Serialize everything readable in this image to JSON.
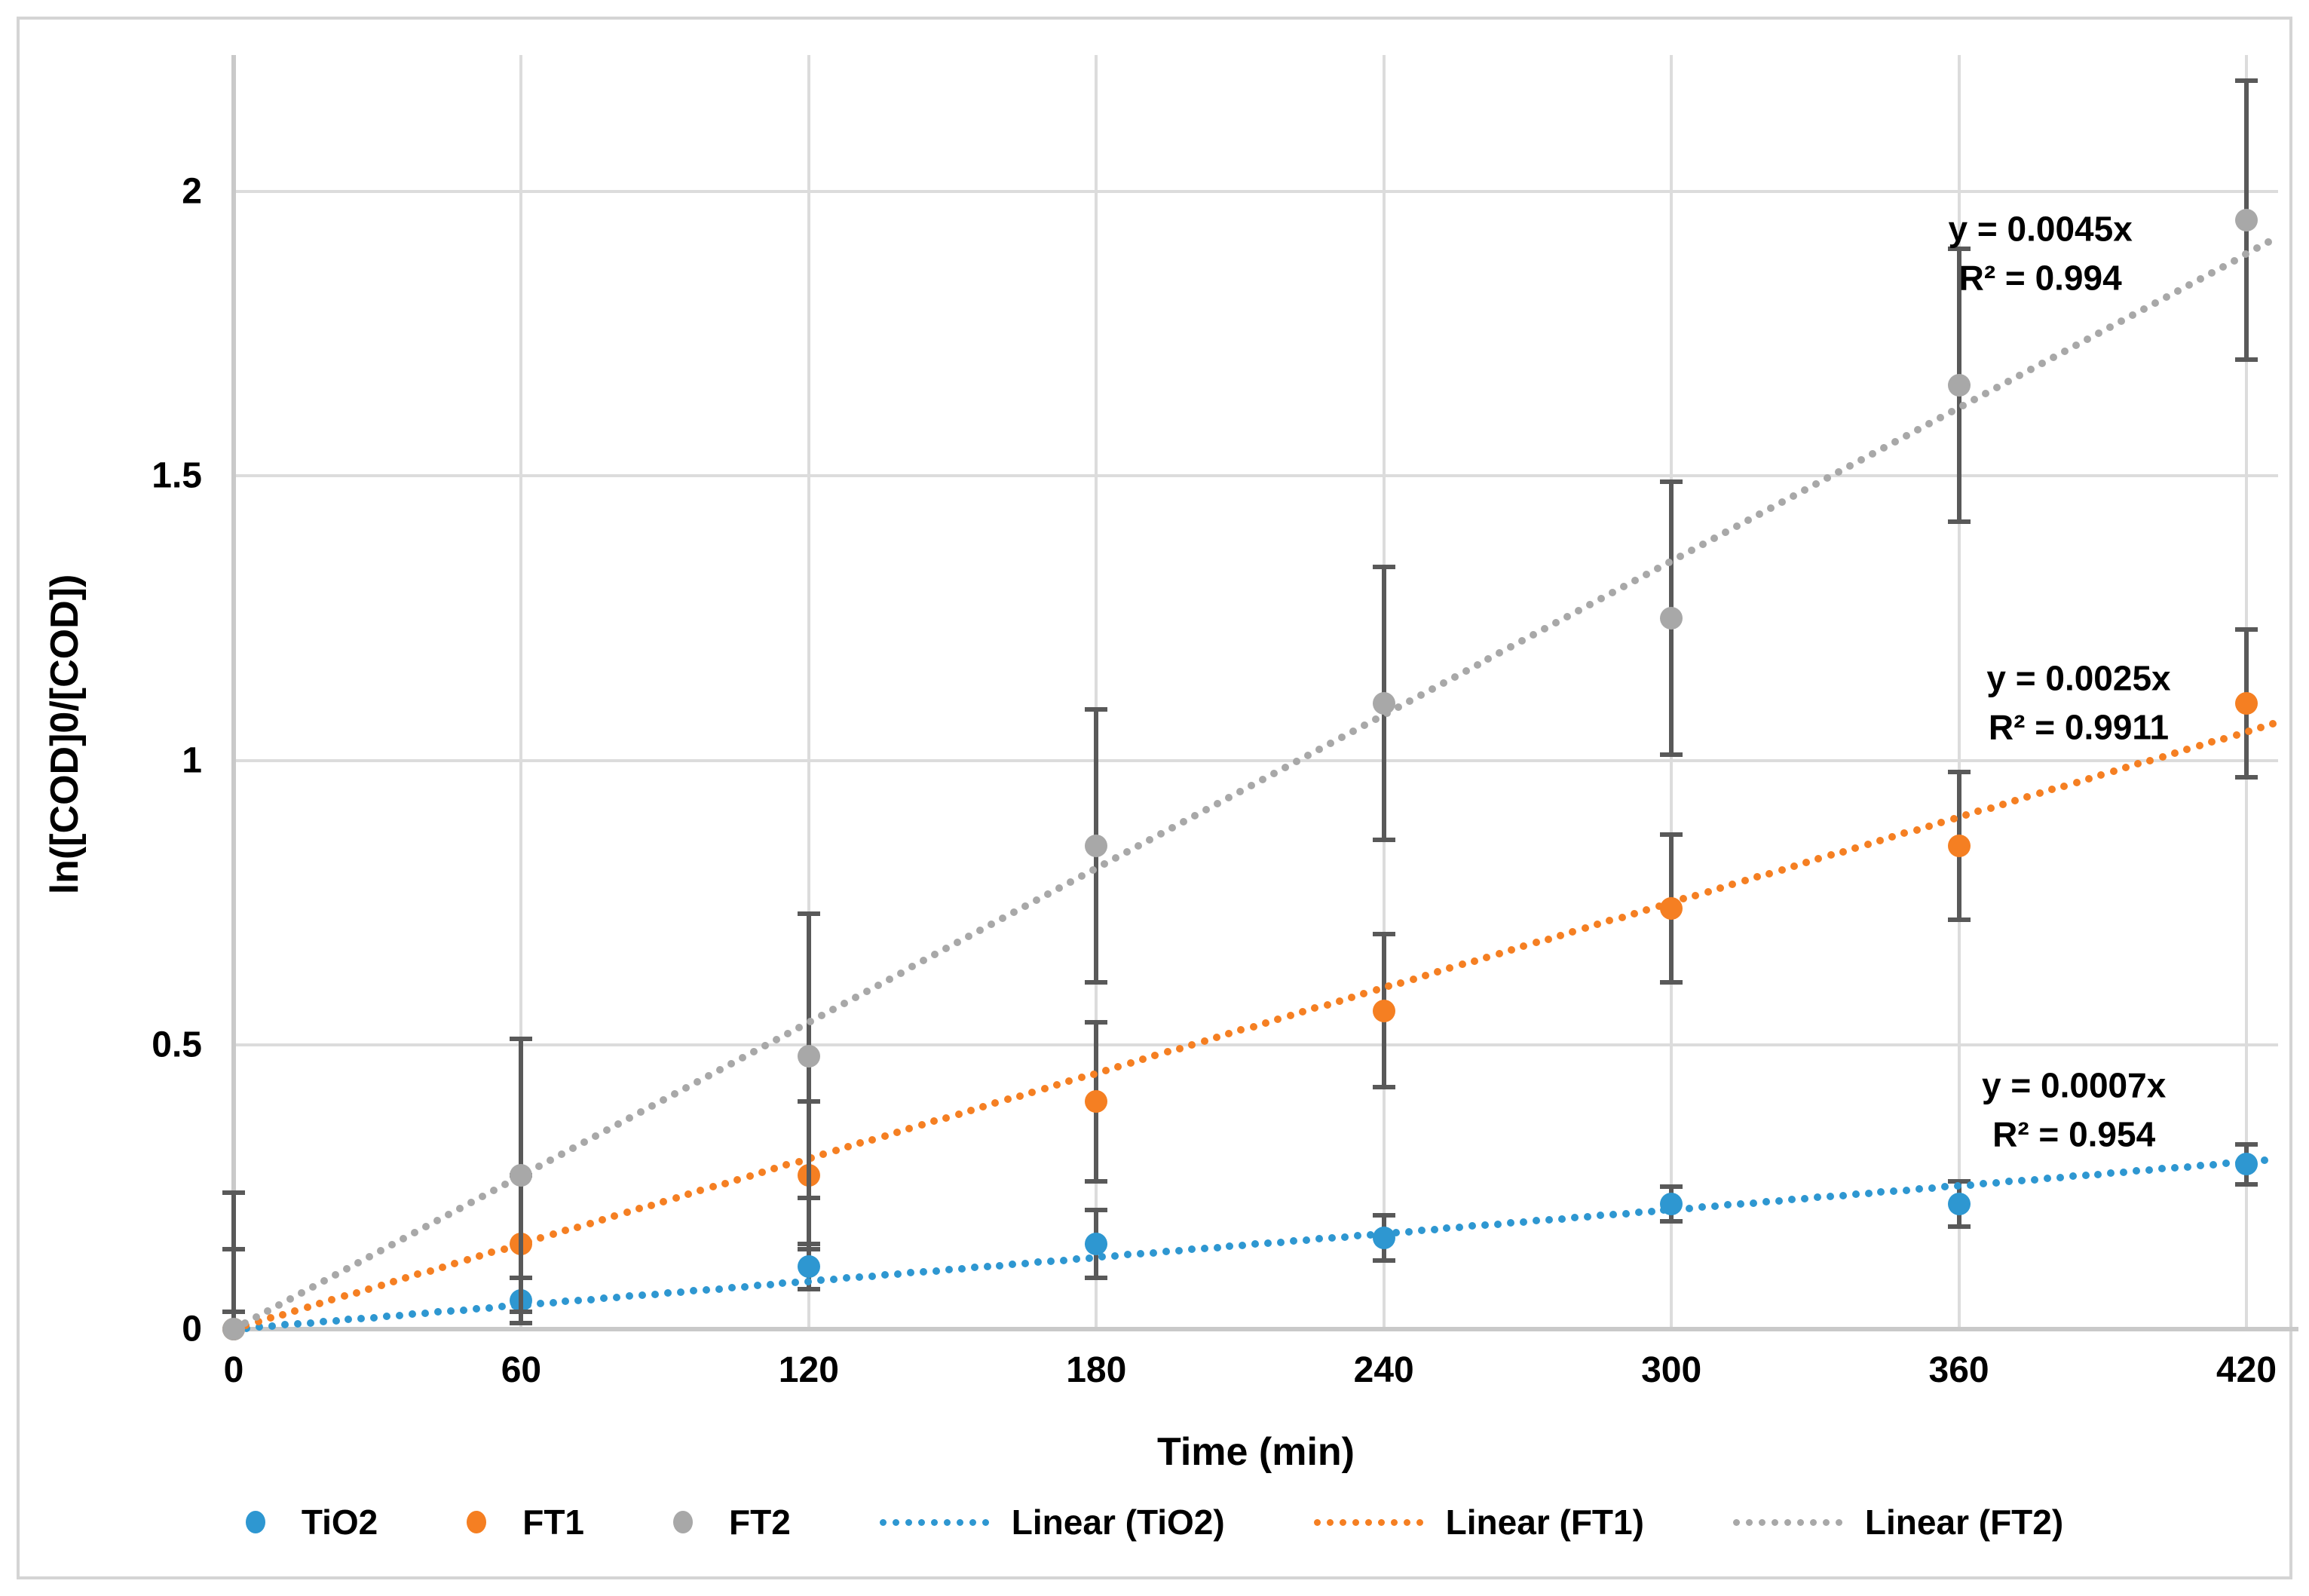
{
  "figure": {
    "background": "#ffffff",
    "border_color": "#d4d4d4",
    "gridline_color": "#dcdcdc",
    "axis_line_color": "#c9c9c9",
    "error_bar_color": "#595959",
    "text_color": "#000000"
  },
  "axes": {
    "x": {
      "title": "Time (min)",
      "ticks": [
        0,
        60,
        120,
        180,
        240,
        300,
        360,
        420
      ],
      "tick_labels": [
        "0",
        "60",
        "120",
        "180",
        "240",
        "300",
        "360",
        "420"
      ],
      "min": 0,
      "max": 426
    },
    "y": {
      "title": "ln([COD]0/[COD])",
      "ticks": [
        0,
        0.5,
        1,
        1.5,
        2
      ],
      "tick_labels": [
        "0",
        "0.5",
        "1",
        "1.5",
        "2"
      ],
      "min": 0,
      "max": 2.24
    }
  },
  "chart_data": {
    "type": "scatter",
    "x": [
      0,
      60,
      120,
      180,
      240,
      300,
      360,
      420
    ],
    "grid": "on",
    "legend_position": "bottom",
    "series": [
      {
        "name": "TiO2",
        "color": "#2e97d1",
        "marker": "circle",
        "values": [
          0,
          0.05,
          0.11,
          0.15,
          0.16,
          0.22,
          0.22,
          0.29
        ],
        "errors": [
          0.03,
          0.04,
          0.04,
          0.06,
          0.04,
          0.03,
          0.04,
          0.035
        ],
        "trendline": {
          "label": "Linear (TiO2)",
          "slope": 0.0007,
          "equation": "y = 0.0007x",
          "r_squared": "R² = 0.954",
          "label_anchor": {
            "x": 384,
            "y": 0.385
          }
        }
      },
      {
        "name": "FT1",
        "color": "#f57f22",
        "marker": "circle",
        "values": [
          0,
          0.15,
          0.27,
          0.4,
          0.56,
          0.74,
          0.85,
          1.1
        ],
        "errors": [
          0.14,
          0.12,
          0.13,
          0.14,
          0.135,
          0.13,
          0.13,
          0.13
        ],
        "trendline": {
          "label": "Linear (FT1)",
          "slope": 0.0025,
          "equation": "y = 0.0025x",
          "r_squared": "R² = 0.9911",
          "label_anchor": {
            "x": 385,
            "y": 1.1
          }
        }
      },
      {
        "name": "FT2",
        "color": "#a8a8a8",
        "marker": "circle",
        "values": [
          0,
          0.27,
          0.48,
          0.85,
          1.1,
          1.25,
          1.66,
          1.95
        ],
        "errors": [
          0.24,
          0.24,
          0.25,
          0.24,
          0.24,
          0.24,
          0.24,
          0.245
        ],
        "trendline": {
          "label": "Linear (FT2)",
          "slope": 0.0045,
          "equation": "y = 0.0045x",
          "r_squared": "R² = 0.994",
          "label_anchor": {
            "x": 377,
            "y": 1.89
          }
        }
      }
    ]
  }
}
